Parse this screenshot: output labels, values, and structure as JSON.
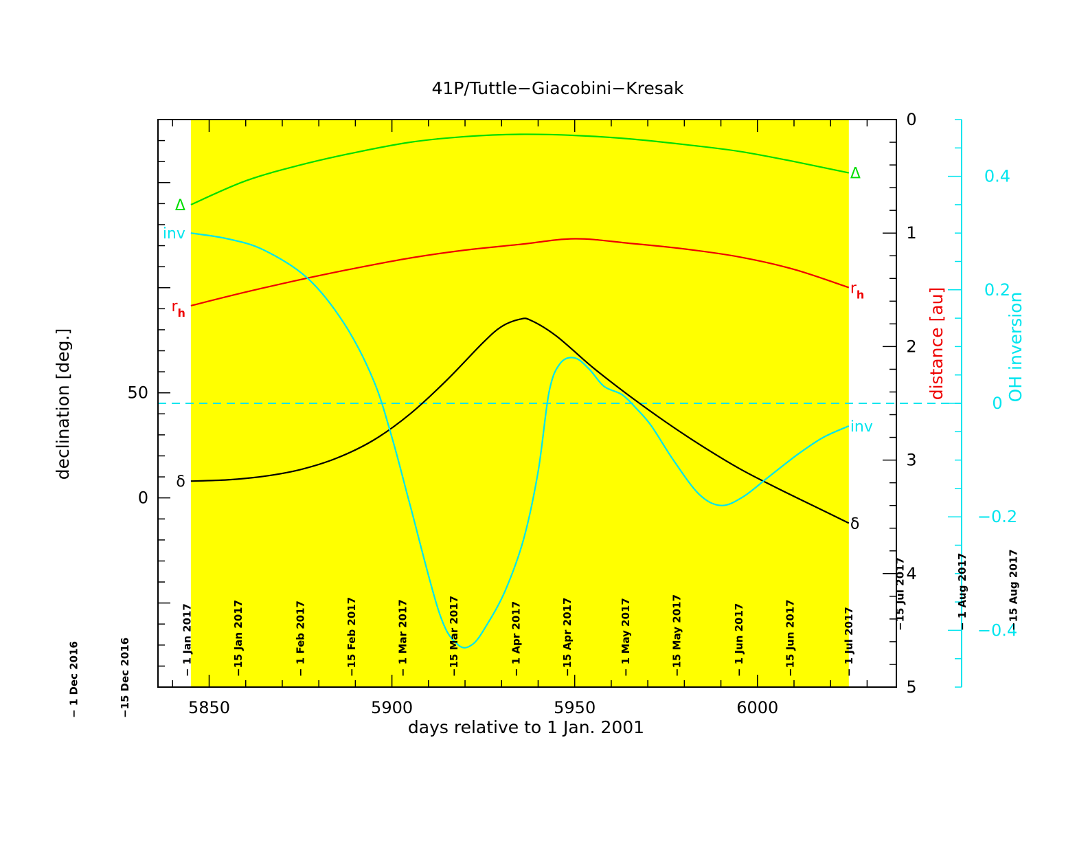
{
  "chart_data": {
    "type": "line",
    "title": "41P/Tuttle−Giacobini−Kresak",
    "xlabel": "days relative to 1 Jan. 2001",
    "ylabel_left": "declination [deg.]",
    "ylabel_right_prefix": "distance ",
    "ylabel_right_unit": "[au]",
    "ylabel_right2": "OH inversion",
    "xlim": [
      5836,
      6038
    ],
    "ylim_left": [
      -90,
      180
    ],
    "ylim_right": [
      0,
      5
    ],
    "ylim_right_inverted": true,
    "ylim_right2": [
      -0.5,
      0.5
    ],
    "x_ticks": [
      {
        "value": 5850,
        "label": "5850"
      },
      {
        "value": 5900,
        "label": "5900"
      },
      {
        "value": 5950,
        "label": "5950"
      },
      {
        "value": 6000,
        "label": "6000"
      }
    ],
    "y_ticks_left": [
      {
        "value": 0,
        "label": "0"
      },
      {
        "value": 50,
        "label": "50"
      }
    ],
    "y_ticks_right": [
      {
        "value": 0,
        "label": "0"
      },
      {
        "value": 1,
        "label": "1"
      },
      {
        "value": 2,
        "label": "2"
      },
      {
        "value": 3,
        "label": "3"
      },
      {
        "value": 4,
        "label": "4"
      },
      {
        "value": 5,
        "label": "5"
      }
    ],
    "y_ticks_right2": [
      {
        "value": 0.4,
        "label": "0.4"
      },
      {
        "value": 0.2,
        "label": "0.2"
      },
      {
        "value": 0,
        "label": "0"
      },
      {
        "value": -0.2,
        "label": "−0.2"
      },
      {
        "value": -0.4,
        "label": "−0.4"
      }
    ],
    "highlight": {
      "x_range": [
        5845,
        6025
      ],
      "color": "#ffff00"
    },
    "zero_line": {
      "axis": "right2",
      "value": 0,
      "color": "#00e5ee",
      "style": "dashed"
    },
    "date_markers": [
      {
        "x": 5813,
        "label": "− 1 Dec 2016"
      },
      {
        "x": 5827,
        "label": "−15 Dec 2016"
      },
      {
        "x": 5844,
        "label": "− 1 Jan 2017"
      },
      {
        "x": 5858,
        "label": "−15 Jan 2017"
      },
      {
        "x": 5875,
        "label": "− 1 Feb 2017"
      },
      {
        "x": 5889,
        "label": "−15 Feb 2017"
      },
      {
        "x": 5903,
        "label": "− 1 Mar 2017"
      },
      {
        "x": 5917,
        "label": "−15 Mar 2017"
      },
      {
        "x": 5934,
        "label": "− 1 Apr 2017"
      },
      {
        "x": 5948,
        "label": "−15 Apr 2017"
      },
      {
        "x": 5964,
        "label": "− 1 May 2017"
      },
      {
        "x": 5978,
        "label": "−15 May 2017"
      },
      {
        "x": 5995,
        "label": "− 1 Jun 2017"
      },
      {
        "x": 6009,
        "label": "−15 Jun 2017"
      },
      {
        "x": 6025,
        "label": "− 1 Jul 2017"
      },
      {
        "x": 6039,
        "label": "−15 Jul 2017"
      },
      {
        "x": 6056,
        "label": "− 1 Aug 2017"
      },
      {
        "x": 6070,
        "label": "−15 Aug 2017"
      }
    ],
    "series": [
      {
        "name": "δ",
        "axis": "left",
        "color": "#000000",
        "x": [
          5845,
          5855,
          5865,
          5875,
          5885,
          5895,
          5905,
          5915,
          5925,
          5930,
          5935,
          5938,
          5945,
          5955,
          5965,
          5975,
          5985,
          5995,
          6005,
          6015,
          6025
        ],
        "y": [
          8,
          8.6,
          10.3,
          13.5,
          19,
          27.5,
          40,
          56,
          74,
          81.5,
          85,
          84.5,
          77,
          62,
          48.5,
          36,
          24.5,
          14,
          5,
          -3.5,
          -12
        ]
      },
      {
        "name": "r_h",
        "axis": "right",
        "color": "#ee0000",
        "x": [
          5845,
          5860,
          5875,
          5890,
          5905,
          5920,
          5935,
          5950,
          5965,
          5980,
          5995,
          6010,
          6025
        ],
        "y": [
          1.64,
          1.52,
          1.41,
          1.31,
          1.22,
          1.15,
          1.1,
          1.05,
          1.09,
          1.14,
          1.21,
          1.32,
          1.48
        ]
      },
      {
        "name": "Δ",
        "axis": "right",
        "color": "#00dd00",
        "x": [
          5845,
          5860,
          5875,
          5890,
          5905,
          5920,
          5935,
          5950,
          5965,
          5980,
          5995,
          6010,
          6025
        ],
        "y": [
          0.75,
          0.54,
          0.4,
          0.29,
          0.2,
          0.15,
          0.13,
          0.14,
          0.17,
          0.22,
          0.28,
          0.37,
          0.47
        ]
      },
      {
        "name": "inv",
        "axis": "right2",
        "color": "#00e5ee",
        "x": [
          5845,
          5855,
          5865,
          5877,
          5887,
          5895,
          5900,
          5905,
          5913,
          5918,
          5922,
          5926,
          5931,
          5936,
          5940,
          5943,
          5946,
          5950,
          5954,
          5958,
          5963,
          5967,
          5971,
          5977,
          5984,
          5990,
          5996,
          6003,
          6011,
          6018,
          6025
        ],
        "y": [
          0.3,
          0.29,
          0.27,
          0.22,
          0.14,
          0.04,
          -0.06,
          -0.18,
          -0.37,
          -0.425,
          -0.425,
          -0.39,
          -0.33,
          -0.24,
          -0.12,
          0.02,
          0.07,
          0.08,
          0.06,
          0.03,
          0.015,
          -0.01,
          -0.04,
          -0.1,
          -0.16,
          -0.18,
          -0.165,
          -0.13,
          -0.09,
          -0.06,
          -0.04
        ]
      }
    ],
    "annotations": [
      {
        "series": "Δ",
        "text": "Δ",
        "at": "start",
        "color": "#00dd00"
      },
      {
        "series": "Δ",
        "text": "Δ",
        "at": "end",
        "color": "#00dd00"
      },
      {
        "series": "r_h",
        "text": "r",
        "sub": "h",
        "at": "start",
        "color": "#ee0000"
      },
      {
        "series": "r_h",
        "text": "r",
        "sub": "h",
        "at": "end",
        "color": "#ee0000"
      },
      {
        "series": "inv",
        "text": "inv",
        "at": "start",
        "color": "#00e5ee"
      },
      {
        "series": "inv",
        "text": "inv",
        "at": "end",
        "color": "#00e5ee"
      },
      {
        "series": "δ",
        "text": "δ",
        "at": "start",
        "color": "#000000"
      },
      {
        "series": "δ",
        "text": "δ",
        "at": "end",
        "color": "#000000"
      }
    ]
  }
}
